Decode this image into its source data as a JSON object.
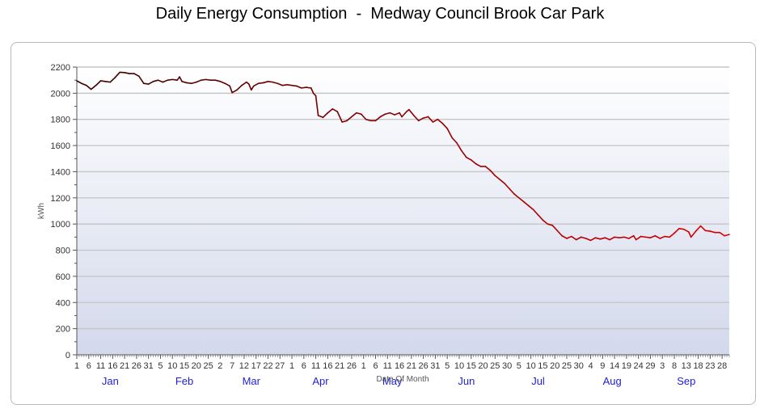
{
  "chart_data": {
    "type": "line",
    "title": "Daily Energy Consumption  -  Medway Council Brook Car Park",
    "xlabel": "Date Of Month",
    "ylabel": "kWh",
    "ylim": [
      0,
      2200
    ],
    "yticks": [
      0,
      200,
      400,
      600,
      800,
      1000,
      1200,
      1400,
      1600,
      1800,
      2000,
      2200
    ],
    "grid": true,
    "x_day_labels": [
      {
        "day": 1,
        "label": "1"
      },
      {
        "day": 6,
        "label": "6"
      },
      {
        "day": 11,
        "label": "11"
      },
      {
        "day": 16,
        "label": "16"
      },
      {
        "day": 21,
        "label": "21"
      },
      {
        "day": 26,
        "label": "26"
      },
      {
        "day": 31,
        "label": "31"
      },
      {
        "day": 36,
        "label": "5"
      },
      {
        "day": 41,
        "label": "10"
      },
      {
        "day": 46,
        "label": "15"
      },
      {
        "day": 51,
        "label": "20"
      },
      {
        "day": 56,
        "label": "25"
      },
      {
        "day": 61,
        "label": "2"
      },
      {
        "day": 66,
        "label": "7"
      },
      {
        "day": 71,
        "label": "12"
      },
      {
        "day": 76,
        "label": "17"
      },
      {
        "day": 81,
        "label": "22"
      },
      {
        "day": 86,
        "label": "27"
      },
      {
        "day": 91,
        "label": "1"
      },
      {
        "day": 96,
        "label": "6"
      },
      {
        "day": 101,
        "label": "11"
      },
      {
        "day": 106,
        "label": "16"
      },
      {
        "day": 111,
        "label": "21"
      },
      {
        "day": 116,
        "label": "26"
      },
      {
        "day": 121,
        "label": "1"
      },
      {
        "day": 126,
        "label": "6"
      },
      {
        "day": 131,
        "label": "11"
      },
      {
        "day": 136,
        "label": "16"
      },
      {
        "day": 141,
        "label": "21"
      },
      {
        "day": 146,
        "label": "26"
      },
      {
        "day": 151,
        "label": "31"
      },
      {
        "day": 156,
        "label": "5"
      },
      {
        "day": 161,
        "label": "10"
      },
      {
        "day": 166,
        "label": "15"
      },
      {
        "day": 171,
        "label": "20"
      },
      {
        "day": 176,
        "label": "25"
      },
      {
        "day": 181,
        "label": "30"
      },
      {
        "day": 186,
        "label": "5"
      },
      {
        "day": 191,
        "label": "10"
      },
      {
        "day": 196,
        "label": "15"
      },
      {
        "day": 201,
        "label": "20"
      },
      {
        "day": 206,
        "label": "25"
      },
      {
        "day": 211,
        "label": "30"
      },
      {
        "day": 216,
        "label": "4"
      },
      {
        "day": 221,
        "label": "9"
      },
      {
        "day": 226,
        "label": "14"
      },
      {
        "day": 231,
        "label": "19"
      },
      {
        "day": 236,
        "label": "24"
      },
      {
        "day": 241,
        "label": "29"
      },
      {
        "day": 246,
        "label": "3"
      },
      {
        "day": 251,
        "label": "8"
      },
      {
        "day": 256,
        "label": "13"
      },
      {
        "day": 261,
        "label": "18"
      },
      {
        "day": 266,
        "label": "23"
      },
      {
        "day": 271,
        "label": "28"
      }
    ],
    "months": [
      {
        "label": "Jan",
        "day": 15
      },
      {
        "label": "Feb",
        "day": 46
      },
      {
        "label": "Mar",
        "day": 74
      },
      {
        "label": "Apr",
        "day": 103
      },
      {
        "label": "May",
        "day": 133
      },
      {
        "label": "Jun",
        "day": 164
      },
      {
        "label": "Jul",
        "day": 194
      },
      {
        "label": "Aug",
        "day": 225
      },
      {
        "label": "Sep",
        "day": 256
      }
    ],
    "series": [
      {
        "color_start": "#3a0000",
        "color_end": "#d90000",
        "points": [
          [
            1,
            2095
          ],
          [
            3,
            2075
          ],
          [
            5,
            2060
          ],
          [
            7,
            2030
          ],
          [
            9,
            2060
          ],
          [
            11,
            2095
          ],
          [
            13,
            2090
          ],
          [
            15,
            2085
          ],
          [
            17,
            2120
          ],
          [
            19,
            2160
          ],
          [
            21,
            2158
          ],
          [
            23,
            2150
          ],
          [
            25,
            2150
          ],
          [
            27,
            2130
          ],
          [
            29,
            2075
          ],
          [
            31,
            2070
          ],
          [
            33,
            2090
          ],
          [
            35,
            2100
          ],
          [
            37,
            2085
          ],
          [
            39,
            2100
          ],
          [
            41,
            2105
          ],
          [
            43,
            2100
          ],
          [
            44,
            2125
          ],
          [
            45,
            2090
          ],
          [
            47,
            2080
          ],
          [
            49,
            2075
          ],
          [
            51,
            2085
          ],
          [
            53,
            2100
          ],
          [
            55,
            2105
          ],
          [
            57,
            2100
          ],
          [
            59,
            2100
          ],
          [
            61,
            2090
          ],
          [
            63,
            2075
          ],
          [
            65,
            2055
          ],
          [
            66,
            2005
          ],
          [
            68,
            2025
          ],
          [
            70,
            2060
          ],
          [
            72,
            2085
          ],
          [
            73,
            2070
          ],
          [
            74,
            2025
          ],
          [
            75,
            2055
          ],
          [
            77,
            2075
          ],
          [
            79,
            2080
          ],
          [
            81,
            2090
          ],
          [
            83,
            2085
          ],
          [
            85,
            2075
          ],
          [
            87,
            2060
          ],
          [
            89,
            2065
          ],
          [
            91,
            2060
          ],
          [
            93,
            2055
          ],
          [
            95,
            2040
          ],
          [
            97,
            2045
          ],
          [
            99,
            2040
          ],
          [
            100,
            2000
          ],
          [
            101,
            1980
          ],
          [
            102,
            1830
          ],
          [
            104,
            1815
          ],
          [
            106,
            1850
          ],
          [
            108,
            1880
          ],
          [
            110,
            1860
          ],
          [
            112,
            1780
          ],
          [
            114,
            1790
          ],
          [
            116,
            1820
          ],
          [
            118,
            1850
          ],
          [
            120,
            1840
          ],
          [
            122,
            1800
          ],
          [
            124,
            1790
          ],
          [
            126,
            1790
          ],
          [
            128,
            1820
          ],
          [
            130,
            1840
          ],
          [
            132,
            1850
          ],
          [
            134,
            1835
          ],
          [
            136,
            1850
          ],
          [
            137,
            1820
          ],
          [
            139,
            1860
          ],
          [
            140,
            1875
          ],
          [
            142,
            1830
          ],
          [
            144,
            1790
          ],
          [
            146,
            1810
          ],
          [
            148,
            1820
          ],
          [
            150,
            1780
          ],
          [
            152,
            1800
          ],
          [
            154,
            1770
          ],
          [
            156,
            1730
          ],
          [
            158,
            1660
          ],
          [
            160,
            1620
          ],
          [
            162,
            1560
          ],
          [
            164,
            1510
          ],
          [
            166,
            1490
          ],
          [
            168,
            1460
          ],
          [
            170,
            1440
          ],
          [
            172,
            1440
          ],
          [
            174,
            1410
          ],
          [
            176,
            1370
          ],
          [
            178,
            1340
          ],
          [
            180,
            1310
          ],
          [
            182,
            1270
          ],
          [
            184,
            1230
          ],
          [
            186,
            1200
          ],
          [
            188,
            1170
          ],
          [
            190,
            1140
          ],
          [
            192,
            1110
          ],
          [
            194,
            1070
          ],
          [
            196,
            1030
          ],
          [
            198,
            1000
          ],
          [
            200,
            990
          ],
          [
            202,
            950
          ],
          [
            204,
            910
          ],
          [
            206,
            890
          ],
          [
            208,
            905
          ],
          [
            210,
            880
          ],
          [
            212,
            900
          ],
          [
            214,
            890
          ],
          [
            216,
            875
          ],
          [
            218,
            895
          ],
          [
            220,
            885
          ],
          [
            222,
            895
          ],
          [
            224,
            880
          ],
          [
            226,
            900
          ],
          [
            228,
            895
          ],
          [
            230,
            900
          ],
          [
            232,
            890
          ],
          [
            234,
            910
          ],
          [
            235,
            880
          ],
          [
            237,
            905
          ],
          [
            239,
            900
          ],
          [
            241,
            895
          ],
          [
            243,
            910
          ],
          [
            245,
            890
          ],
          [
            247,
            905
          ],
          [
            249,
            900
          ],
          [
            251,
            930
          ],
          [
            253,
            965
          ],
          [
            255,
            960
          ],
          [
            257,
            940
          ],
          [
            258,
            900
          ],
          [
            260,
            945
          ],
          [
            262,
            985
          ],
          [
            264,
            950
          ],
          [
            266,
            945
          ],
          [
            268,
            935
          ],
          [
            270,
            935
          ],
          [
            272,
            910
          ],
          [
            274,
            920
          ]
        ]
      }
    ]
  }
}
